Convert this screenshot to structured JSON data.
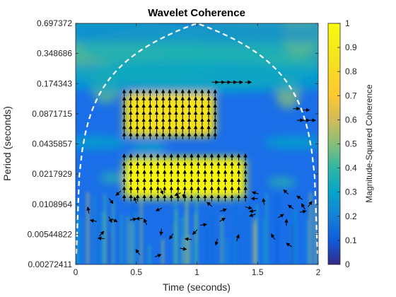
{
  "chart_data": {
    "type": "heatmap",
    "title": "Wavelet Coherence",
    "xlabel": "Time (seconds)",
    "ylabel": "Period (seconds)",
    "xlim": [
      0,
      2
    ],
    "ylim": [
      0.00272411,
      0.697372
    ],
    "y_scale": "log2",
    "x_ticks": [
      0,
      0.5,
      1,
      1.5,
      2
    ],
    "x_tick_labels": [
      "0",
      "0.5",
      "1",
      "1.5",
      "2"
    ],
    "y_ticks": [
      0.00272411,
      0.00544822,
      0.0108964,
      0.0217929,
      0.0435857,
      0.0871715,
      0.174343,
      0.348686,
      0.697372
    ],
    "y_tick_labels": [
      "0.00272411",
      "0.00544822",
      "0.0108964",
      "0.0217929",
      "0.0435857",
      "0.0871715",
      "0.174343",
      "0.348686",
      "0.697372"
    ],
    "colorbar": {
      "label": "Magnitude-Squared Coherence",
      "range": [
        0,
        1
      ],
      "ticks": [
        0,
        0.1,
        0.2,
        0.3,
        0.4,
        0.5,
        0.6,
        0.7,
        0.8,
        0.9,
        1
      ],
      "tick_labels": [
        "0",
        "0.1",
        "0.2",
        "0.3",
        "0.4",
        "0.5",
        "0.6",
        "0.7",
        "0.8",
        "0.9",
        "1"
      ],
      "colormap": "parula"
    },
    "high_coherence_regions": [
      {
        "time": [
          0.4,
          1.4
        ],
        "period": [
          0.0125,
          0.032
        ],
        "coherence": 0.97,
        "phase_direction": "up"
      },
      {
        "time": [
          0.4,
          1.15
        ],
        "period": [
          0.052,
          0.14
        ],
        "coherence": 0.85,
        "phase_direction": "up"
      }
    ],
    "cone_of_influence": {
      "style": "dashed",
      "color": "#ffffff",
      "peak_period": 0.697372,
      "peak_time": 1
    }
  }
}
